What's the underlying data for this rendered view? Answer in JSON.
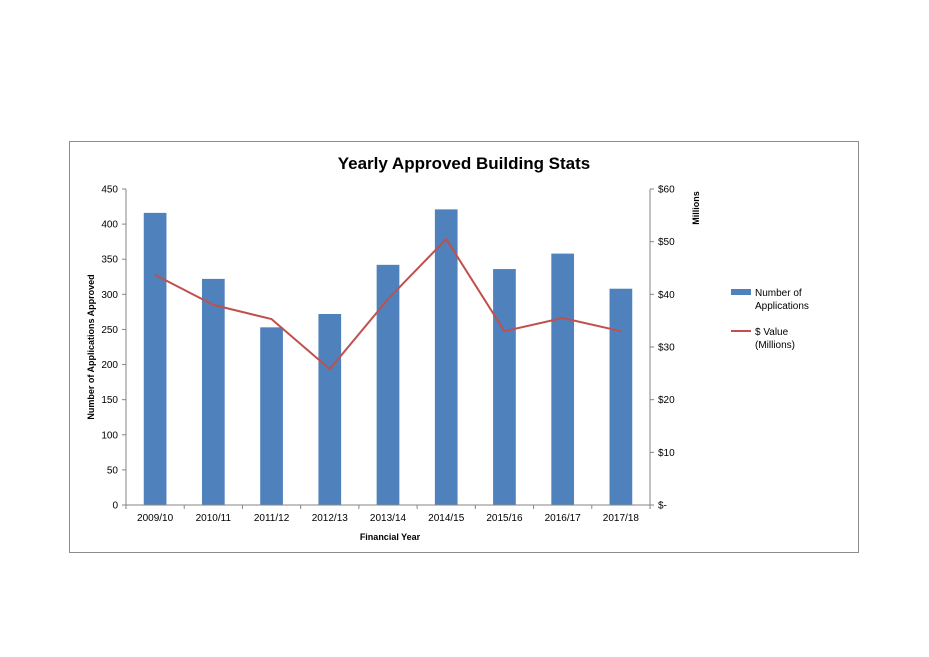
{
  "chart_data": {
    "type": "bar",
    "title": "Yearly Approved Building Stats",
    "xlabel": "Financial Year",
    "ylabel": "Number of Applications Approved",
    "y2label": "Millions",
    "categories": [
      "2009/10",
      "2010/11",
      "2011/12",
      "2012/13",
      "2013/14",
      "2014/15",
      "2015/16",
      "2016/17",
      "2017/18"
    ],
    "ylim": [
      0,
      450
    ],
    "yticks": [
      "0",
      "50",
      "100",
      "150",
      "200",
      "250",
      "300",
      "350",
      "400",
      "450"
    ],
    "y2lim": [
      0,
      60
    ],
    "y2ticks": [
      "$-",
      "$10",
      "$20",
      "$30",
      "$40",
      "$50",
      "$60"
    ],
    "grid": false,
    "legend_position": "right",
    "series": [
      {
        "name": "Number of Applications",
        "legend_lines": [
          "Number of",
          "Applications"
        ],
        "type": "bar",
        "axis": "left",
        "color": "#4f81bd",
        "values": [
          416,
          322,
          253,
          272,
          342,
          421,
          336,
          358,
          308
        ]
      },
      {
        "name": "$ Value (Millions)",
        "legend_lines": [
          "$ Value",
          "(Millions)"
        ],
        "type": "line",
        "axis": "right",
        "color": "#c0504d",
        "values": [
          43.7,
          38.0,
          35.3,
          25.8,
          39.1,
          50.5,
          33.0,
          35.5,
          33.0
        ]
      }
    ]
  }
}
